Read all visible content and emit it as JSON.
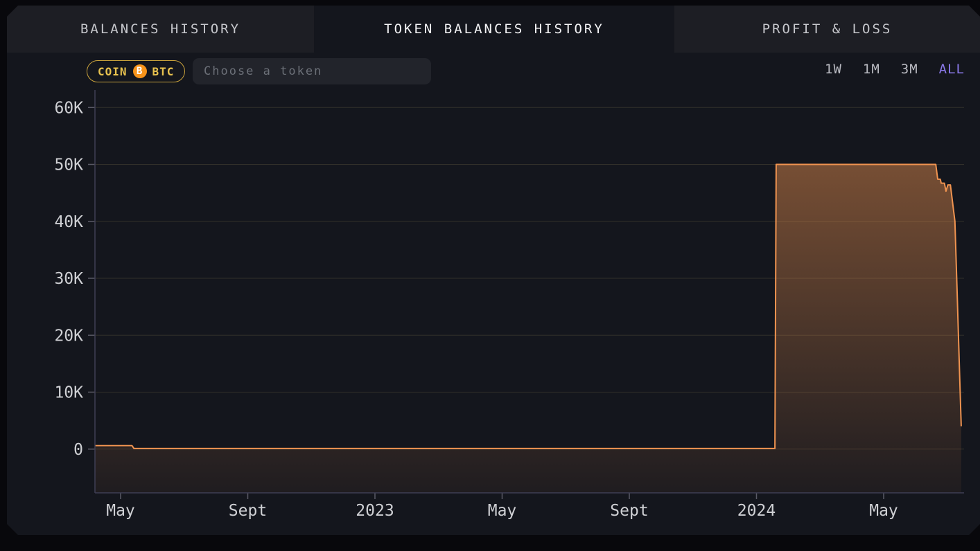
{
  "tabs": [
    {
      "label": "BALANCES HISTORY",
      "active": false
    },
    {
      "label": "TOKEN BALANCES HISTORY",
      "active": true
    },
    {
      "label": "PROFIT & LOSS",
      "active": false
    }
  ],
  "toolbar": {
    "token_chip": {
      "kind_label": "COIN",
      "symbol": "BTC",
      "icon": "bitcoin-icon",
      "icon_glyph": "B"
    },
    "token_search_placeholder": "Choose a token",
    "ranges": [
      {
        "label": "1W",
        "active": false
      },
      {
        "label": "1M",
        "active": false
      },
      {
        "label": "3M",
        "active": false
      },
      {
        "label": "ALL",
        "active": true
      }
    ]
  },
  "colors": {
    "page_bg": "#08080c",
    "panel_bg": "#14161d",
    "inactive_tab_bg": "#1d1e24",
    "line": "#ef9350",
    "fill_rgb": "239,147,80",
    "grid": "#32302b",
    "axis": "#3e3e54",
    "tick": "#5a5a66",
    "label": "#cfd0d4",
    "accent_purple": "#8b79ea",
    "chip_gold": "#e8c24f",
    "bitcoin_orange": "#f7931a"
  },
  "chart_data": {
    "type": "area",
    "title": "Token balances history (BTC)",
    "x_unit": "months since 2022-01 (4 = May 2022)",
    "ylabel": "",
    "xlabel": "",
    "ylim": [
      0,
      65000
    ],
    "grid": true,
    "y_ticks": [
      {
        "v": 0,
        "label": "0"
      },
      {
        "v": 10000,
        "label": "10K"
      },
      {
        "v": 20000,
        "label": "20K"
      },
      {
        "v": 30000,
        "label": "30K"
      },
      {
        "v": 40000,
        "label": "40K"
      },
      {
        "v": 50000,
        "label": "50K"
      },
      {
        "v": 60000,
        "label": "60K"
      }
    ],
    "x_ticks": [
      {
        "m": 4,
        "label": "May"
      },
      {
        "m": 8,
        "label": "Sept"
      },
      {
        "m": 12,
        "label": "2023"
      },
      {
        "m": 16,
        "label": "May"
      },
      {
        "m": 20,
        "label": "Sept"
      },
      {
        "m": 24,
        "label": "2024"
      },
      {
        "m": 28,
        "label": "May"
      }
    ],
    "points": [
      [
        3.19,
        600
      ],
      [
        4.36,
        600
      ],
      [
        4.42,
        100
      ],
      [
        24.58,
        100
      ],
      [
        24.62,
        50000
      ],
      [
        29.64,
        50000
      ],
      [
        29.7,
        47400
      ],
      [
        29.78,
        47400
      ],
      [
        29.81,
        46700
      ],
      [
        29.91,
        46700
      ],
      [
        29.96,
        45300
      ],
      [
        30.02,
        46400
      ],
      [
        30.1,
        46400
      ],
      [
        30.24,
        40000
      ],
      [
        30.32,
        26000
      ],
      [
        30.39,
        13000
      ],
      [
        30.44,
        4000
      ]
    ]
  }
}
